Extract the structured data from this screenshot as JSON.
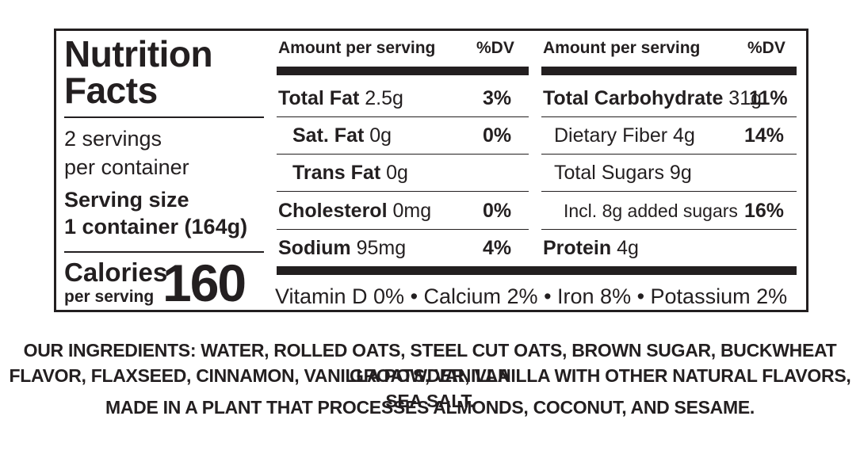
{
  "label": {
    "title_line1": "Nutrition",
    "title_line2": "Facts",
    "servings_line1": "2 servings",
    "servings_line2": "per container",
    "serving_size_line1": "Serving size",
    "serving_size_line2": "1 container (164g)",
    "calories_label": "Calories",
    "calories_sub": "per serving",
    "calories_value": "160",
    "left_table": {
      "header_amount": "Amount per serving",
      "header_dv": "%DV",
      "rows": [
        {
          "name": "Total Fat",
          "amount": "2.5g",
          "dv": "3%"
        },
        {
          "name": "Sat. Fat",
          "amount": "0g",
          "dv": "0%"
        },
        {
          "name": "Trans Fat",
          "amount": "0g",
          "dv": ""
        },
        {
          "name": "Cholesterol",
          "amount": "0mg",
          "dv": "0%"
        },
        {
          "name": "Sodium",
          "amount": "95mg",
          "dv": "4%"
        }
      ]
    },
    "right_table": {
      "header_amount": "Amount per serving",
      "header_dv": "%DV",
      "rows": [
        {
          "name": "Total Carbohydrate",
          "amount": "31g",
          "dv": "11%"
        },
        {
          "name": "Dietary Fiber 4g",
          "amount": "",
          "dv": "14%"
        },
        {
          "name": "Total Sugars 9g",
          "amount": "",
          "dv": ""
        },
        {
          "name": "Incl. 8g added sugars",
          "amount": "",
          "dv": "16%"
        },
        {
          "name": "Protein",
          "amount": "4g",
          "dv": ""
        }
      ]
    },
    "vitamins": "Vitamin D 0% • Calcium 2% • Iron 8% • Potassium 2%"
  },
  "ingredients": {
    "line1": "OUR INGREDIENTS:  WATER, ROLLED OATS, STEEL CUT OATS, BROWN SUGAR, BUCKWHEAT GROATS, VANILLA",
    "line2": "FLAVOR, FLAXSEED, CINNAMON, VANILLA POWDER, VANILLA WITH OTHER NATURAL FLAVORS, SEA SALT.",
    "line3": "MADE IN A PLANT THAT PROCESSES ALMONDS, COCONUT, AND SESAME."
  }
}
